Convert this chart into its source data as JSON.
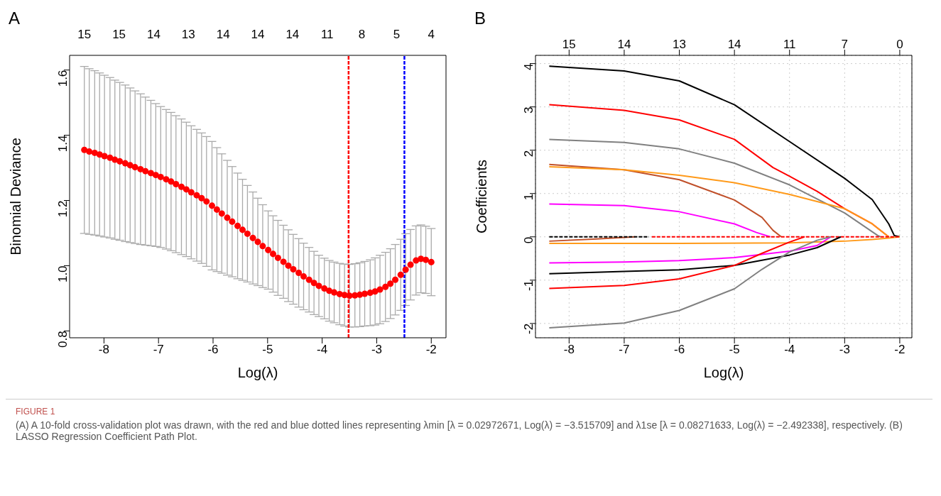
{
  "chart_data": [
    {
      "type": "scatter",
      "title": "A",
      "xlabel": "Log(λ)",
      "ylabel": "Binomial Deviance",
      "color": "#ff0000",
      "marker": "circle",
      "x": [
        -8.36,
        -8.27,
        -8.17,
        -8.08,
        -7.99,
        -7.89,
        -7.8,
        -7.71,
        -7.61,
        -7.52,
        -7.43,
        -7.33,
        -7.24,
        -7.14,
        -7.05,
        -6.96,
        -6.86,
        -6.77,
        -6.68,
        -6.58,
        -6.49,
        -6.4,
        -6.3,
        -6.21,
        -6.12,
        -6.02,
        -5.93,
        -5.84,
        -5.74,
        -5.65,
        -5.55,
        -5.46,
        -5.37,
        -5.27,
        -5.18,
        -5.09,
        -4.99,
        -4.9,
        -4.81,
        -4.71,
        -4.62,
        -4.53,
        -4.43,
        -4.34,
        -4.24,
        -4.15,
        -4.06,
        -3.96,
        -3.87,
        -3.78,
        -3.68,
        -3.59,
        -3.5,
        -3.4,
        -3.31,
        -3.22,
        -3.12,
        -3.03,
        -2.94,
        -2.84,
        -2.75,
        -2.66,
        -2.56,
        -2.47,
        -2.38,
        -2.28,
        -2.19,
        -2.1,
        -2.0
      ],
      "values": [
        1.355,
        1.35,
        1.346,
        1.341,
        1.336,
        1.331,
        1.325,
        1.32,
        1.314,
        1.308,
        1.302,
        1.296,
        1.29,
        1.284,
        1.278,
        1.272,
        1.265,
        1.258,
        1.25,
        1.242,
        1.234,
        1.225,
        1.216,
        1.207,
        1.197,
        1.184,
        1.172,
        1.16,
        1.147,
        1.135,
        1.122,
        1.11,
        1.098,
        1.085,
        1.073,
        1.06,
        1.048,
        1.036,
        1.024,
        1.012,
        1.0,
        0.989,
        0.978,
        0.967,
        0.957,
        0.947,
        0.938,
        0.93,
        0.923,
        0.918,
        0.913,
        0.91,
        0.908,
        0.909,
        0.911,
        0.914,
        0.917,
        0.921,
        0.927,
        0.935,
        0.945,
        0.957,
        0.972,
        0.988,
        1.003,
        1.016,
        1.021,
        1.018,
        1.011
      ],
      "errors": [
        0.256,
        0.254,
        0.252,
        0.25,
        0.248,
        0.246,
        0.244,
        0.242,
        0.24,
        0.237,
        0.234,
        0.231,
        0.227,
        0.223,
        0.219,
        0.216,
        0.214,
        0.212,
        0.21,
        0.208,
        0.206,
        0.204,
        0.202,
        0.2,
        0.199,
        0.197,
        0.19,
        0.183,
        0.176,
        0.169,
        0.162,
        0.155,
        0.148,
        0.141,
        0.134,
        0.127,
        0.12,
        0.117,
        0.115,
        0.112,
        0.11,
        0.107,
        0.105,
        0.102,
        0.099,
        0.097,
        0.094,
        0.093,
        0.093,
        0.093,
        0.094,
        0.095,
        0.096,
        0.097,
        0.098,
        0.099,
        0.101,
        0.103,
        0.105,
        0.106,
        0.107,
        0.108,
        0.109,
        0.11,
        0.108,
        0.106,
        0.104,
        0.103,
        0.103
      ],
      "xlim": [
        -8.63,
        -1.73
      ],
      "xticks": [
        -8,
        -7,
        -6,
        -5,
        -4,
        -3,
        -2
      ],
      "ylim": [
        0.779,
        1.645
      ],
      "yticks": [
        0.8,
        {
          "value": 1,
          "label": "1.0"
        },
        1.2,
        1.4,
        1.6
      ],
      "ref_lines": [
        {
          "axis": "x",
          "value": -3.515709,
          "color": "#ff0000",
          "line_style": "dashed"
        },
        {
          "axis": "x",
          "value": -2.492338,
          "color": "#0000ff",
          "line_style": "dashed"
        }
      ],
      "annotations": [
        "15",
        "15",
        "14",
        "13",
        "14",
        "14",
        "14",
        "11",
        "8",
        "5",
        "4"
      ]
    },
    {
      "type": "line",
      "title": "B",
      "xlabel": "Log(λ)",
      "ylabel": "Coefficients",
      "marker": "none",
      "grid": true,
      "xlim": [
        -8.61,
        -1.78
      ],
      "xticks": [
        -8,
        -7,
        -6,
        -5,
        -4,
        -3,
        -2
      ],
      "ylim": [
        -2.33,
        4.19
      ],
      "yticks": [
        -2,
        -1,
        0,
        1,
        2,
        3,
        4
      ],
      "annotations": [
        "15",
        "14",
        "13",
        "14",
        "11",
        "7",
        "0",
        "FIGURE 1",
        "(A) A 10-fold cross-validation plot was drawn, with the red and blue dotted lines representing λmin [λ = 0.02972671, Log(λ) = −3.515709] and λ1se [λ = 0.08271633, Log(λ) = −2.492338], respectively. (B) LASSO Regression Coefficient Path Plot."
      ],
      "series": [
        {
          "color": "#000000",
          "x": [
            -8.36,
            -7,
            -6,
            -5,
            -4,
            -3,
            -2.5,
            -2.2,
            -2.1,
            -2.0
          ],
          "values": [
            3.94,
            3.83,
            3.6,
            3.05,
            2.2,
            1.35,
            0.86,
            0.3,
            0.03,
            0
          ]
        },
        {
          "color": "#ff0000",
          "x": [
            -8.36,
            -7,
            -6,
            -5,
            -4.3,
            -4,
            -3.5,
            -3,
            -2.5,
            -2.25,
            -2.2
          ],
          "values": [
            3.05,
            2.92,
            2.7,
            2.25,
            1.6,
            1.4,
            1.05,
            0.65,
            0.3,
            0.05,
            0
          ]
        },
        {
          "color": "#808080",
          "x": [
            -8.36,
            -7,
            -6,
            -5,
            -4,
            -3,
            -2.4,
            -2.35
          ],
          "values": [
            2.25,
            2.18,
            2.03,
            1.7,
            1.2,
            0.55,
            0.03,
            0
          ]
        },
        {
          "color": "#c0502a",
          "x": [
            -8.36,
            -7,
            -6,
            -5,
            -4.5,
            -4.3,
            -4.15
          ],
          "values": [
            1.67,
            1.55,
            1.32,
            0.85,
            0.45,
            0.15,
            0
          ]
        },
        {
          "color": "#ff9a1a",
          "x": [
            -8.36,
            -7,
            -6,
            -5,
            -4,
            -3,
            -2.5,
            -2.25,
            -2.2
          ],
          "values": [
            1.62,
            1.55,
            1.42,
            1.25,
            0.98,
            0.65,
            0.3,
            0.05,
            0
          ]
        },
        {
          "color": "#ff00ff",
          "x": [
            -8.36,
            -7,
            -6,
            -5,
            -4.6,
            -4.35
          ],
          "values": [
            0.76,
            0.72,
            0.58,
            0.3,
            0.1,
            0
          ]
        },
        {
          "color": "#ff9a1a",
          "x": [
            -8.36,
            -6,
            -4,
            -3,
            -2.5,
            -2.2,
            -2.0
          ],
          "values": [
            -0.15,
            -0.15,
            -0.14,
            -0.1,
            -0.06,
            -0.03,
            0
          ]
        },
        {
          "color": "#c0502a",
          "x": [
            -8.36,
            -7.5,
            -6.8
          ],
          "values": [
            -0.1,
            -0.05,
            0
          ]
        },
        {
          "color": "#000000",
          "line_style": "dashed",
          "x": [
            -8.36,
            -6.55
          ],
          "values": [
            0,
            0
          ]
        },
        {
          "color": "#ff0000",
          "line_style": "dashed",
          "x": [
            -6.5,
            -2.0
          ],
          "values": [
            0,
            0
          ]
        },
        {
          "color": "#ff00ff",
          "x": [
            -8.36,
            -7,
            -6,
            -5,
            -4,
            -3.5,
            -3.25
          ],
          "values": [
            -0.6,
            -0.58,
            -0.55,
            -0.48,
            -0.33,
            -0.2,
            0
          ]
        },
        {
          "color": "#000000",
          "x": [
            -8.36,
            -7,
            -6,
            -5,
            -4,
            -3.5,
            -3.07
          ],
          "values": [
            -0.85,
            -0.8,
            -0.76,
            -0.66,
            -0.42,
            -0.25,
            0
          ]
        },
        {
          "color": "#ff0000",
          "x": [
            -8.36,
            -7,
            -6,
            -5,
            -4.5,
            -4,
            -3.73
          ],
          "values": [
            -1.19,
            -1.12,
            -0.97,
            -0.66,
            -0.38,
            -0.12,
            0
          ]
        },
        {
          "color": "#808080",
          "x": [
            -8.36,
            -7,
            -6,
            -5,
            -4.5,
            -4,
            -3.5,
            -3.25
          ],
          "values": [
            -2.1,
            -1.99,
            -1.7,
            -1.2,
            -0.75,
            -0.35,
            -0.08,
            0
          ]
        }
      ]
    }
  ]
}
